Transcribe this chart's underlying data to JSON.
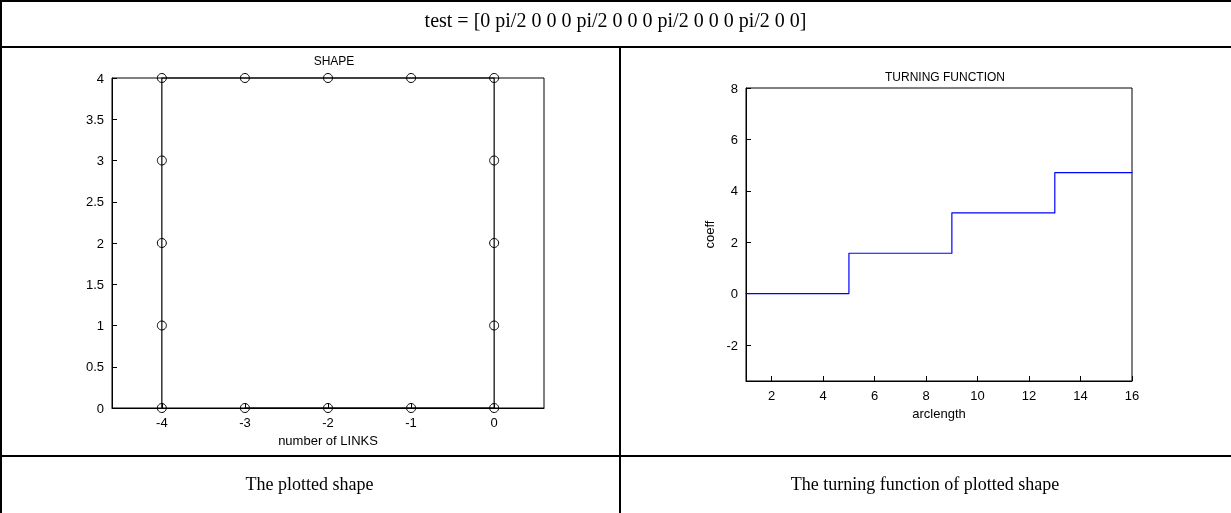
{
  "chart_data": [
    {
      "type": "line",
      "title": "SHAPE",
      "xlabel": "number of LINKS",
      "marker": "circle",
      "grid": false,
      "xlim": [
        -4.6,
        0.6
      ],
      "xticks": [
        -4,
        -3,
        -2,
        -1,
        0
      ],
      "ylim": [
        0,
        4
      ],
      "yticks": [
        0,
        0.5,
        1,
        1.5,
        2,
        2.5,
        3,
        3.5,
        4
      ],
      "series": [
        {
          "color": "#000000",
          "x": [
            -4,
            -4,
            -4,
            -4,
            -4,
            -3,
            -2,
            -1,
            0,
            0,
            0,
            0,
            0,
            -1,
            -2,
            -3
          ],
          "values": [
            0,
            1,
            2,
            3,
            4,
            4,
            4,
            4,
            4,
            3,
            2,
            1,
            0,
            0,
            0,
            0
          ]
        }
      ],
      "annotations": [
        "test = [0 pi/2 0 0 0 pi/2 0 0 0 pi/2 0 0 0 pi/2 0 0]",
        "The plotted shape"
      ]
    },
    {
      "type": "step",
      "title": "TURNING FUNCTION",
      "xlabel": "arclength",
      "ylabel": "coeff",
      "marker": "none",
      "grid": false,
      "xlim": [
        1,
        16
      ],
      "xticks": [
        2,
        4,
        6,
        8,
        10,
        12,
        14,
        16
      ],
      "ylim": [
        -3.4,
        8
      ],
      "yticks": [
        -2,
        0,
        2,
        4,
        6,
        8
      ],
      "series": [
        {
          "color": "#0000ff",
          "x": [
            1,
            5,
            9,
            13,
            16
          ],
          "values": [
            0,
            1.57,
            3.14,
            4.71,
            4.71
          ]
        }
      ],
      "annotations": [
        "The turning function of plotted shape"
      ]
    }
  ]
}
